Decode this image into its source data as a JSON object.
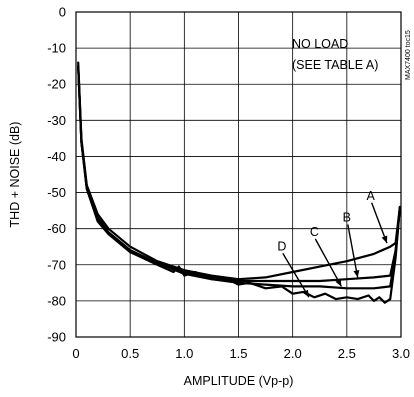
{
  "chart_data": {
    "type": "line",
    "title": "",
    "xlabel": "AMPLITUDE (Vp-p)",
    "ylabel": "THD + NOISE (dB)",
    "xlim": [
      0,
      3.0
    ],
    "ylim": [
      -90,
      0
    ],
    "x_ticks": [
      "0",
      "0.5",
      "1.0",
      "1.5",
      "2.0",
      "2.5",
      "3.0"
    ],
    "y_ticks": [
      "0",
      "-10",
      "-20",
      "-30",
      "-40",
      "-50",
      "-60",
      "-70",
      "-80",
      "-90"
    ],
    "grid": true,
    "annotation_lines": [
      "NO LOAD",
      "(SEE TABLE A)"
    ],
    "figure_id": "MAX7400 toc15",
    "series": [
      {
        "name": "A",
        "points": [
          [
            0.02,
            -14
          ],
          [
            0.05,
            -35
          ],
          [
            0.1,
            -48
          ],
          [
            0.2,
            -56
          ],
          [
            0.3,
            -60
          ],
          [
            0.5,
            -65
          ],
          [
            0.75,
            -69
          ],
          [
            1.0,
            -71.5
          ],
          [
            1.25,
            -73
          ],
          [
            1.5,
            -74
          ],
          [
            1.75,
            -73.5
          ],
          [
            2.0,
            -72
          ],
          [
            2.25,
            -70.5
          ],
          [
            2.5,
            -69
          ],
          [
            2.75,
            -67
          ],
          [
            2.9,
            -65
          ],
          [
            2.95,
            -64
          ],
          [
            2.99,
            -54
          ]
        ]
      },
      {
        "name": "B",
        "points": [
          [
            0.02,
            -15
          ],
          [
            0.05,
            -36
          ],
          [
            0.1,
            -48.5
          ],
          [
            0.2,
            -57
          ],
          [
            0.3,
            -61
          ],
          [
            0.5,
            -66
          ],
          [
            0.75,
            -69.5
          ],
          [
            1.0,
            -72
          ],
          [
            1.25,
            -73.5
          ],
          [
            1.5,
            -74.5
          ],
          [
            1.75,
            -74.5
          ],
          [
            2.0,
            -74.5
          ],
          [
            2.25,
            -74.5
          ],
          [
            2.5,
            -74
          ],
          [
            2.75,
            -73.5
          ],
          [
            2.9,
            -73
          ],
          [
            2.95,
            -66
          ],
          [
            2.99,
            -54
          ]
        ]
      },
      {
        "name": "C",
        "points": [
          [
            0.02,
            -15
          ],
          [
            0.05,
            -36
          ],
          [
            0.1,
            -49
          ],
          [
            0.2,
            -57.5
          ],
          [
            0.3,
            -61
          ],
          [
            0.5,
            -66
          ],
          [
            0.75,
            -69.5
          ],
          [
            1.0,
            -72.5
          ],
          [
            1.25,
            -74
          ],
          [
            1.5,
            -75
          ],
          [
            1.75,
            -75.5
          ],
          [
            2.0,
            -76
          ],
          [
            2.25,
            -76
          ],
          [
            2.5,
            -76.5
          ],
          [
            2.75,
            -76.5
          ],
          [
            2.9,
            -76
          ],
          [
            2.95,
            -67
          ],
          [
            2.99,
            -54
          ]
        ]
      },
      {
        "name": "D",
        "points": [
          [
            0.02,
            -15
          ],
          [
            0.05,
            -36
          ],
          [
            0.1,
            -49
          ],
          [
            0.2,
            -58
          ],
          [
            0.3,
            -61.5
          ],
          [
            0.5,
            -66.5
          ],
          [
            0.75,
            -70
          ],
          [
            0.9,
            -72
          ],
          [
            0.95,
            -70.5
          ],
          [
            1.0,
            -73
          ],
          [
            1.1,
            -72
          ],
          [
            1.25,
            -74
          ],
          [
            1.4,
            -74
          ],
          [
            1.5,
            -75.5
          ],
          [
            1.6,
            -75
          ],
          [
            1.75,
            -76.5
          ],
          [
            1.9,
            -76
          ],
          [
            2.0,
            -78
          ],
          [
            2.1,
            -77.5
          ],
          [
            2.2,
            -79
          ],
          [
            2.3,
            -78
          ],
          [
            2.4,
            -79.5
          ],
          [
            2.5,
            -79
          ],
          [
            2.6,
            -79.5
          ],
          [
            2.7,
            -78.5
          ],
          [
            2.75,
            -80
          ],
          [
            2.8,
            -79
          ],
          [
            2.85,
            -80.5
          ],
          [
            2.9,
            -79.5
          ],
          [
            2.95,
            -68
          ],
          [
            2.99,
            -54
          ]
        ]
      }
    ],
    "curve_labels": [
      {
        "text": "A",
        "x": 2.72,
        "y": -52,
        "tip": [
          2.87,
          -64
        ]
      },
      {
        "text": "B",
        "x": 2.5,
        "y": -58,
        "tip": [
          2.6,
          -73.5
        ]
      },
      {
        "text": "C",
        "x": 2.2,
        "y": -62,
        "tip": [
          2.45,
          -76
        ]
      },
      {
        "text": "D",
        "x": 1.9,
        "y": -66,
        "tip": [
          2.15,
          -79
        ]
      }
    ]
  }
}
